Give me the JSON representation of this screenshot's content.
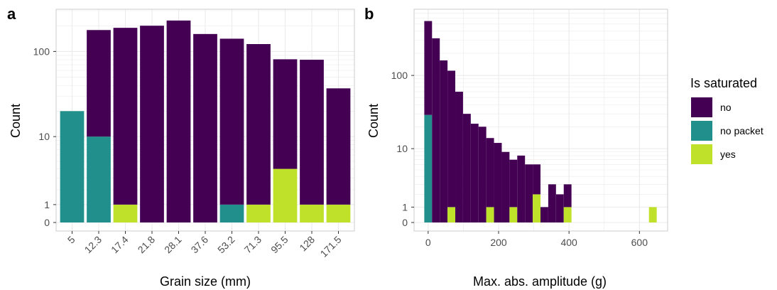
{
  "panels": {
    "a": "a",
    "b": "b"
  },
  "colors": {
    "no": "#440154",
    "no packet": "#21908C",
    "yes": "#BFE12A",
    "grid": "#ebebeb",
    "border": "#cccccc"
  },
  "legend": {
    "title": "Is saturated",
    "entries": [
      "no",
      "no packet",
      "yes"
    ]
  },
  "chart_data": [
    {
      "type": "bar",
      "panel": "a",
      "title": "",
      "xlabel": "Grain size (mm)",
      "ylabel": "Count",
      "y_scale": "pseudo-log",
      "y_ticks": [
        0,
        1,
        10,
        100
      ],
      "categories": [
        "5",
        "12.3",
        "17.4",
        "21.8",
        "28.1",
        "37.6",
        "53.2",
        "71.3",
        "95.5",
        "128",
        "171.5"
      ],
      "series": [
        {
          "name": "no",
          "values": [
            0,
            168,
            188,
            200,
            230,
            160,
            140,
            121,
            77,
            79,
            36
          ]
        },
        {
          "name": "no packet",
          "values": [
            20,
            10,
            0,
            0,
            0,
            0,
            1,
            0,
            0,
            0,
            0
          ]
        },
        {
          "name": "yes",
          "values": [
            0,
            0,
            1,
            0,
            0,
            0,
            0,
            1,
            4,
            1,
            1
          ]
        }
      ]
    },
    {
      "type": "bar",
      "panel": "b",
      "title": "",
      "xlabel": "Max. abs. amplitude (g)",
      "ylabel": "Count",
      "y_scale": "pseudo-log",
      "y_ticks": [
        0,
        1,
        10,
        100
      ],
      "x_ticks": [
        0,
        200,
        400,
        600
      ],
      "xlim": [
        -40,
        680
      ],
      "bin_width": 22,
      "bin_centers": [
        0,
        22,
        44,
        66,
        88,
        110,
        132,
        154,
        176,
        198,
        220,
        242,
        264,
        286,
        308,
        330,
        352,
        374,
        396,
        418,
        440,
        462,
        484,
        506,
        528,
        550,
        572,
        594,
        616,
        638
      ],
      "series": [
        {
          "name": "no",
          "values": [
            520,
            320,
            160,
            115,
            60,
            30,
            22,
            20,
            13,
            12,
            9,
            6,
            8,
            6,
            4,
            1,
            3,
            2,
            2,
            0,
            0,
            0,
            0,
            0,
            0,
            0,
            0,
            0,
            0,
            0
          ]
        },
        {
          "name": "no packet",
          "values": [
            29,
            0,
            0,
            0,
            0,
            0,
            0,
            0,
            0,
            0,
            0,
            0,
            0,
            0,
            0,
            0,
            0,
            0,
            0,
            0,
            0,
            0,
            0,
            0,
            0,
            0,
            0,
            0,
            0,
            0
          ]
        },
        {
          "name": "yes",
          "values": [
            0,
            0,
            0,
            1,
            0,
            0,
            0,
            0,
            1,
            0,
            0,
            1,
            0,
            0,
            2,
            0,
            0,
            0,
            1,
            0,
            0,
            0,
            0,
            0,
            0,
            0,
            0,
            0,
            0,
            1
          ]
        }
      ]
    }
  ]
}
